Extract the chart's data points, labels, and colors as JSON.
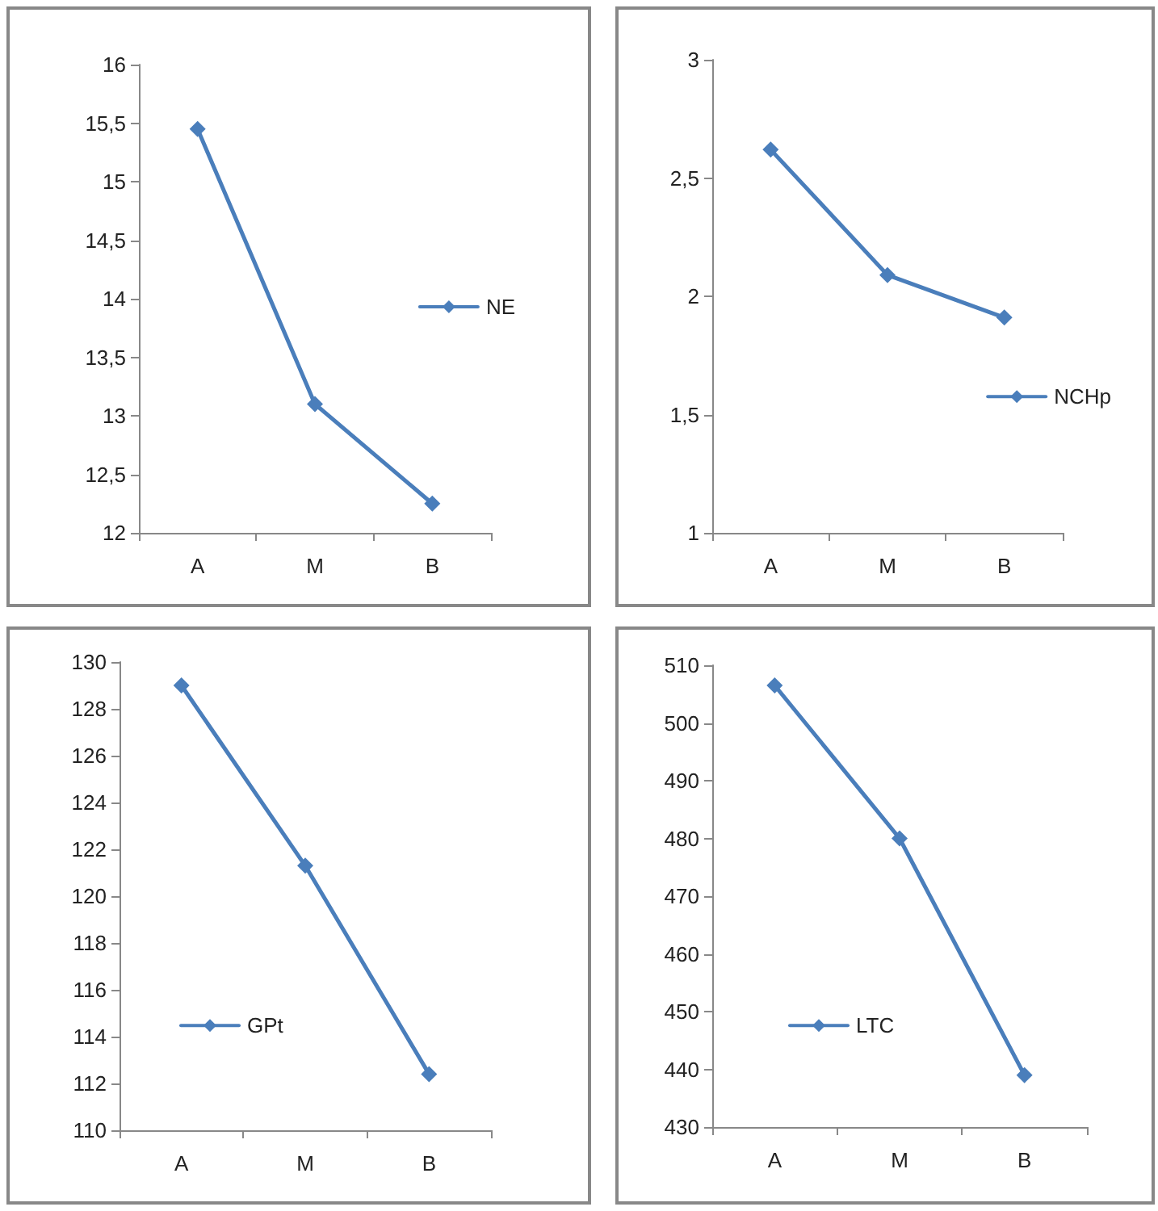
{
  "chart_data": [
    {
      "type": "line",
      "categories": [
        "A",
        "M",
        "B"
      ],
      "series": [
        {
          "name": "NE",
          "color": "#4a7ebb",
          "values": [
            15.45,
            13.1,
            12.25
          ]
        }
      ],
      "ylim": [
        12,
        16
      ],
      "yticks": [
        12,
        {
          "value": 12.5,
          "label": "12,5"
        },
        13,
        {
          "value": 13.5,
          "label": "13,5"
        },
        14,
        {
          "value": 14.5,
          "label": "14,5"
        },
        15,
        {
          "value": 15.5,
          "label": "15,5"
        },
        16
      ],
      "marker": "diamond",
      "legend": "right",
      "grid": false
    },
    {
      "type": "line",
      "categories": [
        "A",
        "M",
        "B"
      ],
      "series": [
        {
          "name": "NCHp",
          "color": "#4a7ebb",
          "values": [
            2.62,
            2.09,
            1.91
          ]
        }
      ],
      "ylim": [
        1,
        3
      ],
      "yticks": [
        1,
        {
          "value": 1.5,
          "label": "1,5"
        },
        2,
        {
          "value": 2.5,
          "label": "2,5"
        },
        3
      ],
      "marker": "diamond",
      "legend": "bottom right",
      "grid": false
    },
    {
      "type": "line",
      "categories": [
        "A",
        "M",
        "B"
      ],
      "series": [
        {
          "name": "GPt",
          "color": "#4a7ebb",
          "values": [
            129,
            121.3,
            112.4
          ]
        }
      ],
      "ylim": [
        110,
        130
      ],
      "yticks": [
        110,
        112,
        114,
        116,
        118,
        120,
        122,
        124,
        126,
        128,
        130
      ],
      "marker": "diamond",
      "legend": "bottom left",
      "grid": false
    },
    {
      "type": "line",
      "categories": [
        "A",
        "M",
        "B"
      ],
      "series": [
        {
          "name": "LTC",
          "color": "#4a7ebb",
          "values": [
            506.5,
            480,
            439
          ]
        }
      ],
      "ylim": [
        430,
        510
      ],
      "yticks": [
        430,
        440,
        450,
        460,
        470,
        480,
        490,
        500,
        510
      ],
      "marker": "diamond",
      "legend": "bottom left",
      "grid": false
    }
  ]
}
